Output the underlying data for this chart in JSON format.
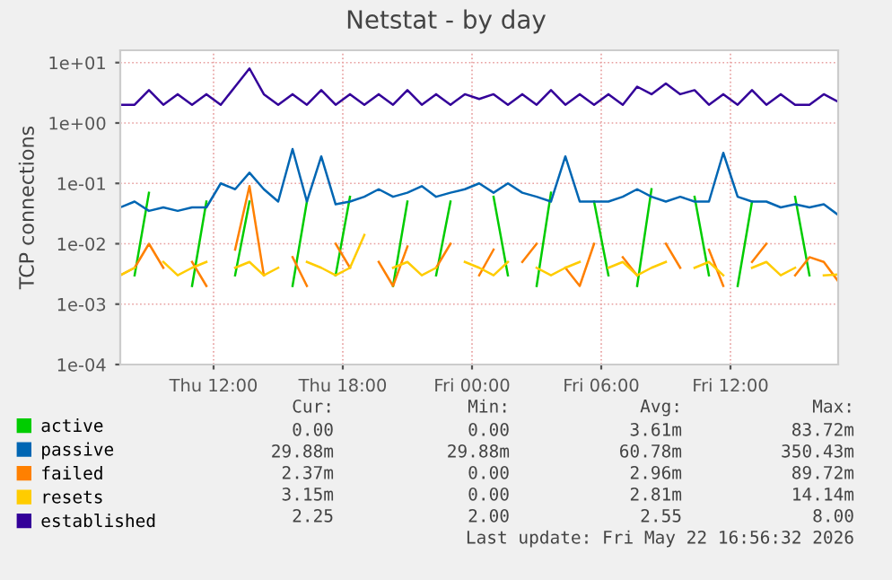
{
  "chart_data": {
    "type": "line",
    "title": "Netstat - by day",
    "ylabel": "TCP connections",
    "x": [
      "2026-05-21T07:40",
      "2026-05-21T08:20",
      "2026-05-21T09:00",
      "2026-05-21T09:40",
      "2026-05-21T10:20",
      "2026-05-21T11:00",
      "2026-05-21T11:40",
      "2026-05-21T12:20",
      "2026-05-21T13:00",
      "2026-05-21T13:40",
      "2026-05-21T14:20",
      "2026-05-21T15:00",
      "2026-05-21T15:40",
      "2026-05-21T16:20",
      "2026-05-21T17:00",
      "2026-05-21T17:40",
      "2026-05-21T18:20",
      "2026-05-21T19:00",
      "2026-05-21T19:40",
      "2026-05-21T20:20",
      "2026-05-21T21:00",
      "2026-05-21T21:40",
      "2026-05-21T22:20",
      "2026-05-21T23:00",
      "2026-05-21T23:40",
      "2026-05-22T00:20",
      "2026-05-22T01:00",
      "2026-05-22T01:40",
      "2026-05-22T02:20",
      "2026-05-22T03:00",
      "2026-05-22T03:40",
      "2026-05-22T04:20",
      "2026-05-22T05:00",
      "2026-05-22T05:40",
      "2026-05-22T06:20",
      "2026-05-22T07:00",
      "2026-05-22T07:40",
      "2026-05-22T08:20",
      "2026-05-22T09:00",
      "2026-05-22T09:40",
      "2026-05-22T10:20",
      "2026-05-22T11:00",
      "2026-05-22T11:40",
      "2026-05-22T12:20",
      "2026-05-22T13:00",
      "2026-05-22T13:40",
      "2026-05-22T14:20",
      "2026-05-22T15:00",
      "2026-05-22T15:40",
      "2026-05-22T16:20",
      "2026-05-22T17:00"
    ],
    "series": [
      {
        "name": "active",
        "color": "#00cc00",
        "values": [
          null,
          0.003,
          0.07,
          null,
          null,
          0.002,
          0.05,
          null,
          0.003,
          0.05,
          null,
          null,
          0.002,
          0.05,
          null,
          0.003,
          0.06,
          null,
          null,
          0.002,
          0.05,
          null,
          0.003,
          0.05,
          null,
          null,
          0.06,
          0.003,
          null,
          0.002,
          0.07,
          null,
          null,
          0.05,
          0.003,
          null,
          0.002,
          0.08,
          null,
          null,
          0.06,
          0.003,
          null,
          0.002,
          0.05,
          null,
          null,
          0.06,
          0.003,
          null,
          null
        ]
      },
      {
        "name": "passive",
        "color": "#0066b3",
        "values": [
          0.04,
          0.05,
          0.035,
          0.04,
          0.035,
          0.04,
          0.04,
          0.1,
          0.08,
          0.15,
          0.08,
          0.05,
          0.37,
          0.05,
          0.28,
          0.045,
          0.05,
          0.06,
          0.08,
          0.06,
          0.07,
          0.09,
          0.06,
          0.07,
          0.08,
          0.1,
          0.07,
          0.1,
          0.07,
          0.06,
          0.05,
          0.28,
          0.05,
          0.05,
          0.05,
          0.06,
          0.08,
          0.06,
          0.05,
          0.06,
          0.05,
          0.05,
          0.32,
          0.06,
          0.05,
          0.05,
          0.04,
          0.045,
          0.04,
          0.045,
          0.03
        ]
      },
      {
        "name": "failed",
        "color": "#ff8000",
        "values": [
          0.003,
          0.004,
          0.01,
          0.004,
          null,
          0.005,
          0.002,
          null,
          0.008,
          0.09,
          0.003,
          null,
          0.006,
          0.002,
          null,
          0.01,
          0.004,
          null,
          0.005,
          0.002,
          0.009,
          null,
          0.004,
          0.01,
          null,
          0.003,
          0.008,
          null,
          0.005,
          0.01,
          null,
          0.004,
          0.002,
          0.01,
          null,
          0.006,
          0.003,
          null,
          0.01,
          0.004,
          null,
          0.008,
          0.002,
          null,
          0.005,
          0.01,
          null,
          0.003,
          0.006,
          0.005,
          0.0024
        ]
      },
      {
        "name": "resets",
        "color": "#ffcc00",
        "values": [
          0.003,
          0.004,
          null,
          0.005,
          0.003,
          0.004,
          0.005,
          null,
          0.004,
          0.005,
          0.003,
          0.004,
          null,
          0.005,
          0.004,
          0.003,
          0.004,
          0.014,
          null,
          0.004,
          0.005,
          0.003,
          0.004,
          null,
          0.005,
          0.004,
          0.003,
          0.005,
          null,
          0.004,
          0.003,
          0.004,
          0.005,
          null,
          0.004,
          0.005,
          0.003,
          0.004,
          0.005,
          null,
          0.004,
          0.005,
          0.003,
          null,
          0.004,
          0.005,
          0.003,
          0.004,
          null,
          0.003,
          0.0031
        ]
      },
      {
        "name": "established",
        "color": "#330099",
        "values": [
          2,
          2,
          3.5,
          2,
          3,
          2,
          3,
          2,
          4,
          8,
          3,
          2,
          3,
          2,
          3.5,
          2,
          3,
          2,
          3,
          2,
          3.5,
          2,
          3,
          2,
          3,
          2.5,
          3,
          2,
          3,
          2,
          3.5,
          2,
          3,
          2,
          3,
          2,
          4,
          3,
          4.5,
          3,
          3.5,
          2,
          3,
          2,
          3.5,
          2,
          3,
          2,
          2,
          3,
          2.25
        ]
      }
    ],
    "log": "y",
    "ylim": [
      0.0001,
      16
    ],
    "yticks": [
      {
        "value": 0.0001,
        "label": "1e-04"
      },
      {
        "value": 0.001,
        "label": "1e-03"
      },
      {
        "value": 0.01,
        "label": "1e-02"
      },
      {
        "value": 0.1,
        "label": "1e-01"
      },
      {
        "value": 1,
        "label": "1e+00"
      },
      {
        "value": 10,
        "label": "1e+01"
      }
    ],
    "xlim": [
      "2026-05-21T07:40",
      "2026-05-22T17:00"
    ],
    "xticks": [
      {
        "value": "2026-05-21T12:00",
        "label": "Thu 12:00"
      },
      {
        "value": "2026-05-21T18:00",
        "label": "Thu 18:00"
      },
      {
        "value": "2026-05-22T00:00",
        "label": "Fri 00:00"
      },
      {
        "value": "2026-05-22T06:00",
        "label": "Fri 06:00"
      },
      {
        "value": "2026-05-22T12:00",
        "label": "Fri 12:00"
      }
    ],
    "grid": true,
    "legend": "bottom left",
    "line_style": "solid",
    "marker": "none",
    "annotations": [
      "Cur:",
      "Min:",
      "Avg:",
      "Max:",
      "0.00",
      "0.00",
      "3.61m",
      "83.72m",
      "29.88m",
      "29.88m",
      "60.78m",
      "350.43m",
      "2.37m",
      "0.00",
      "2.96m",
      "89.72m",
      "3.15m",
      "0.00",
      "2.81m",
      "14.14m",
      "2.25",
      "2.00",
      "2.55",
      "8.00",
      "Last update: Fri May 22 16:56:32 2026"
    ]
  }
}
